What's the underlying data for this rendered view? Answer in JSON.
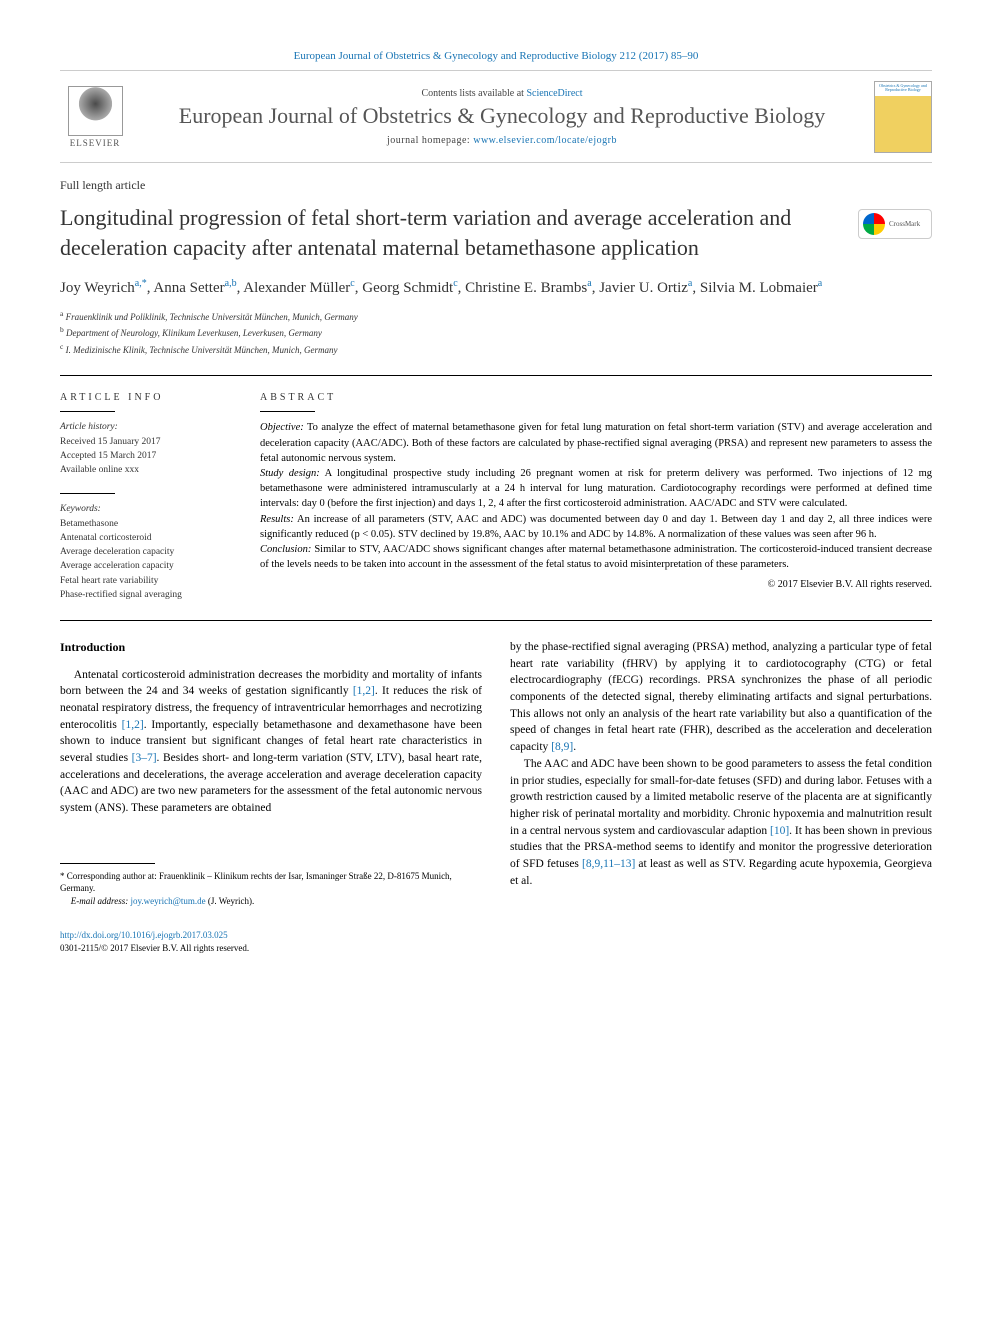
{
  "header": {
    "citation_link": "European Journal of Obstetrics & Gynecology and Reproductive Biology 212 (2017) 85–90",
    "contents_text": "Contents lists available at ",
    "contents_link": "ScienceDirect",
    "journal_name": "European Journal of Obstetrics & Gynecology and Reproductive Biology",
    "homepage_label": "journal homepage: ",
    "homepage_url": "www.elsevier.com/locate/ejogrb",
    "elsevier_label": "ELSEVIER",
    "cover_text": "Obstetrics & Gynecology and Reproductive Biology"
  },
  "article": {
    "type": "Full length article",
    "title": "Longitudinal progression of fetal short-term variation and average acceleration and deceleration capacity after antenatal maternal betamethasone application",
    "crossmark": "CrossMark"
  },
  "authors": {
    "list": "Joy Weyrich",
    "a1_sup": "a,*",
    "a2": ", Anna Setter",
    "a2_sup": "a,b",
    "a3": ", Alexander Müller",
    "a3_sup": "c",
    "a4": ", Georg Schmidt",
    "a4_sup": "c",
    "a5": ", Christine E. Brambs",
    "a5_sup": "a",
    "a6": ", Javier U. Ortiz",
    "a6_sup": "a",
    "a7": ", Silvia M. Lobmaier",
    "a7_sup": "a"
  },
  "affiliations": {
    "a": "Frauenklinik und Poliklinik, Technische Universität München, Munich, Germany",
    "b": "Department of Neurology, Klinikum Leverkusen, Leverkusen, Germany",
    "c": "I. Medizinische Klinik, Technische Universität München, Munich, Germany"
  },
  "article_info": {
    "heading": "ARTICLE INFO",
    "history_label": "Article history:",
    "received": "Received 15 January 2017",
    "accepted": "Accepted 15 March 2017",
    "online": "Available online xxx",
    "keywords_label": "Keywords:",
    "keywords": [
      "Betamethasone",
      "Antenatal corticosteroid",
      "Average deceleration capacity",
      "Average acceleration capacity",
      "Fetal heart rate variability",
      "Phase-rectified signal averaging"
    ]
  },
  "abstract": {
    "heading": "ABSTRACT",
    "objective_label": "Objective:",
    "objective": " To analyze the effect of maternal betamethasone given for fetal lung maturation on fetal short-term variation (STV) and average acceleration and deceleration capacity (AAC/ADC). Both of these factors are calculated by phase-rectified signal averaging (PRSA) and represent new parameters to assess the fetal autonomic nervous system.",
    "design_label": "Study design:",
    "design": " A longitudinal prospective study including 26 pregnant women at risk for preterm delivery was performed. Two injections of 12 mg betamethasone were administered intramuscularly at a 24 h interval for lung maturation. Cardiotocography recordings were performed at defined time intervals: day 0 (before the first injection) and days 1, 2, 4 after the first corticosteroid administration. AAC/ADC and STV were calculated.",
    "results_label": "Results:",
    "results": " An increase of all parameters (STV, AAC and ADC) was documented between day 0 and day 1. Between day 1 and day 2, all three indices were significantly reduced (p < 0.05). STV declined by 19.8%, AAC by 10.1% and ADC by 14.8%. A normalization of these values was seen after 96 h.",
    "conclusion_label": "Conclusion:",
    "conclusion": " Similar to STV, AAC/ADC shows significant changes after maternal betamethasone administration. The corticosteroid-induced transient decrease of the levels needs to be taken into account in the assessment of the fetal status to avoid misinterpretation of these parameters.",
    "copyright": "© 2017 Elsevier B.V. All rights reserved."
  },
  "body": {
    "intro_heading": "Introduction",
    "left_para": "Antenatal corticosteroid administration decreases the morbidity and mortality of infants born between the 24 and 34 weeks of gestation significantly ",
    "ref12a": "[1,2]",
    "left_para2": ". It reduces the risk of neonatal respiratory distress, the frequency of intraventricular hemorrhages and necrotizing enterocolitis ",
    "ref12b": "[1,2]",
    "left_para3": ". Importantly, especially betamethasone and dexamethasone have been shown to induce transient but significant changes of fetal heart rate characteristics in several studies ",
    "ref37": "[3–7]",
    "left_para4": ". Besides short- and long-term variation (STV, LTV), basal heart rate, accelerations and decelerations, the average acceleration and average deceleration capacity (AAC and ADC) are two new parameters for the assessment of the fetal autonomic nervous system (ANS). These parameters are obtained",
    "right_para1": "by the phase-rectified signal averaging (PRSA) method, analyzing a particular type of fetal heart rate variability (fHRV) by applying it to cardiotocography (CTG) or fetal electrocardiography (fECG) recordings. PRSA synchronizes the phase of all periodic components of the detected signal, thereby eliminating artifacts and signal perturbations. This allows not only an analysis of the heart rate variability but also a quantification of the speed of changes in fetal heart rate (FHR), described as the acceleration and deceleration capacity ",
    "ref89": "[8,9]",
    "right_para1_end": ".",
    "right_para2": "The AAC and ADC have been shown to be good parameters to assess the fetal condition in prior studies, especially for small-for-date fetuses (SFD) and during labor. Fetuses with a growth restriction caused by a limited metabolic reserve of the placenta are at significantly higher risk of perinatal mortality and morbidity. Chronic hypoxemia and malnutrition result in a central nervous system and cardiovascular adaption ",
    "ref10": "[10]",
    "right_para2b": ". It has been shown in previous studies that the PRSA-method seems to identify and monitor the progressive deterioration of SFD fetuses ",
    "ref8913": "[8,9,11–13]",
    "right_para2c": " at least as well as STV. Regarding acute hypoxemia, Georgieva et al."
  },
  "footnote": {
    "corr": "* Corresponding author at: Frauenklinik – Klinikum rechts der Isar, Ismaninger Straße 22, D-81675 Munich, Germany.",
    "email_label": "E-mail address: ",
    "email": "joy.weyrich@tum.de",
    "email_suffix": " (J. Weyrich)."
  },
  "doi": {
    "url": "http://dx.doi.org/10.1016/j.ejogrb.2017.03.025",
    "issn": "0301-2115/© 2017 Elsevier B.V. All rights reserved."
  }
}
